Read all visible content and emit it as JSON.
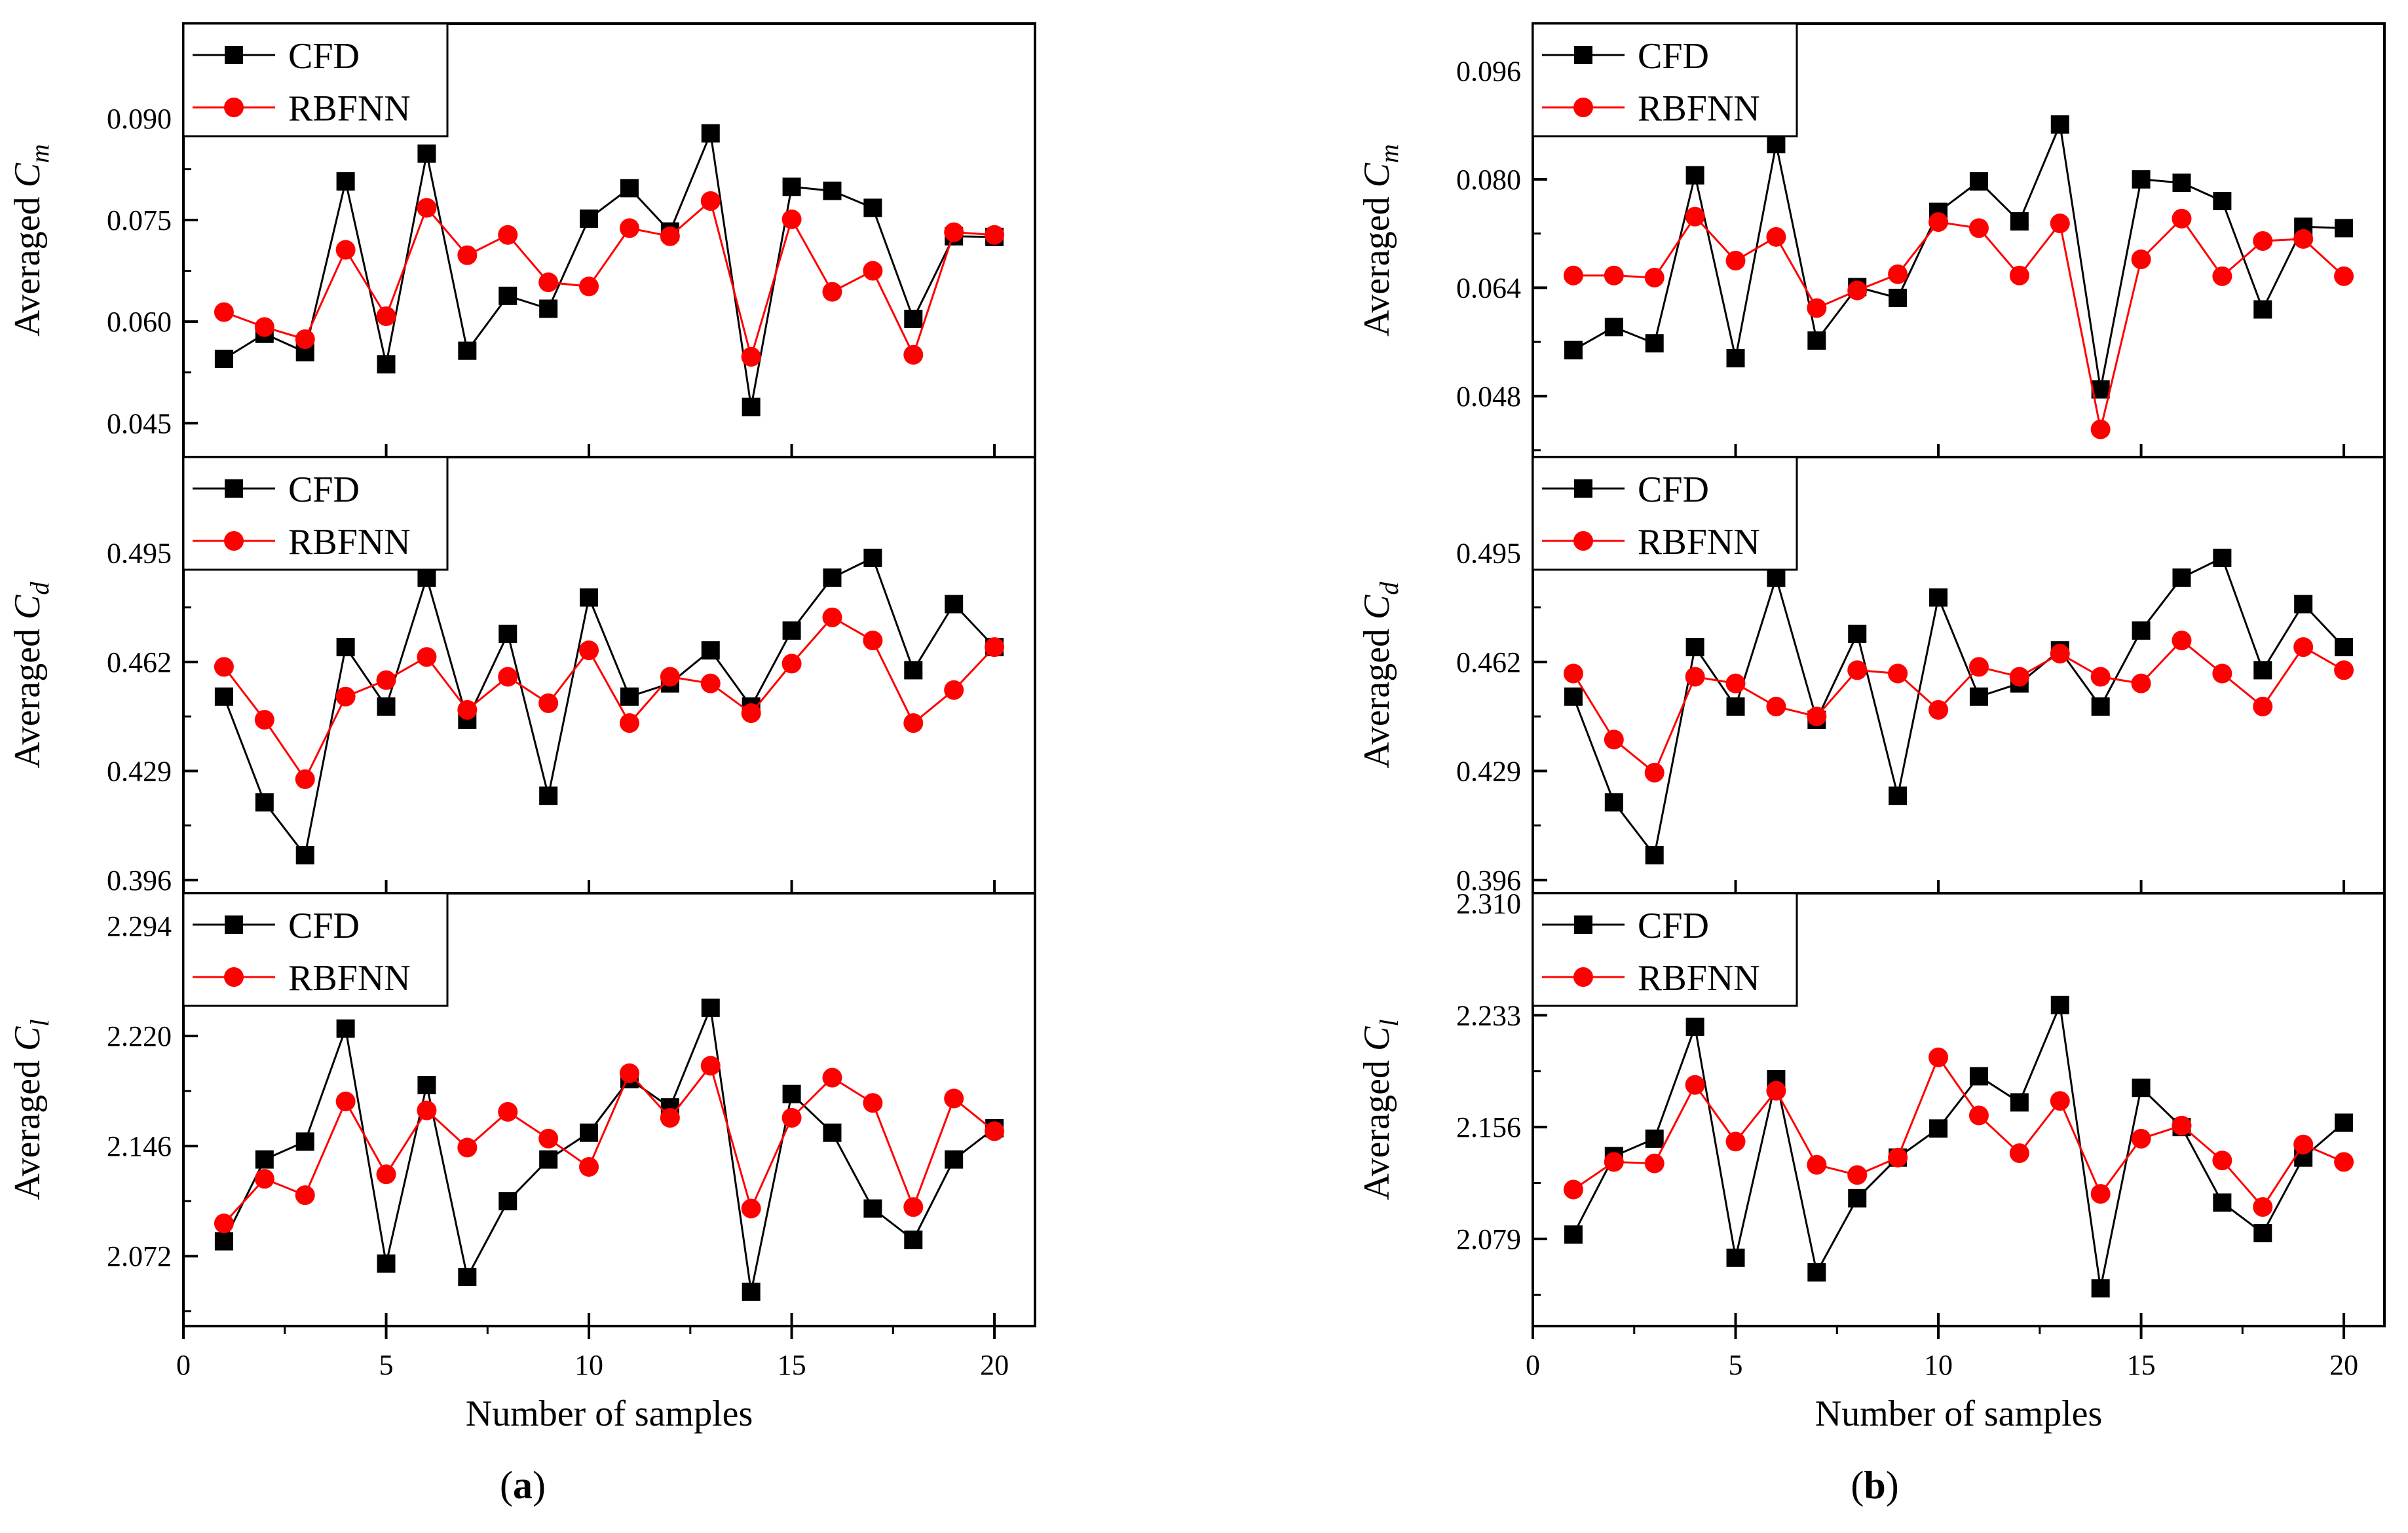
{
  "figure": {
    "xlabel": "Number of samples",
    "legend": {
      "cfd": "CFD",
      "rbfnn": "RBFNN"
    },
    "xticks": [
      "0",
      "5",
      "10",
      "15",
      "20"
    ],
    "colors": {
      "cfd": "#000000",
      "rbfnn": "#ff0000",
      "axis": "#000000"
    }
  },
  "panels": [
    {
      "caption": {
        "open": "(",
        "letter": "a",
        "close": ")"
      },
      "subplots": [
        {
          "yprefix": "Averaged ",
          "ysym": "C",
          "ysub": "m",
          "yticks": [
            "0.045",
            "0.060",
            "0.075",
            "0.090"
          ]
        },
        {
          "yprefix": "Averaged ",
          "ysym": "C",
          "ysub": "d",
          "yticks": [
            "0.396",
            "0.429",
            "0.462",
            "0.495"
          ]
        },
        {
          "yprefix": "Averaged ",
          "ysym": "C",
          "ysub": "l",
          "yticks": [
            "2.072",
            "2.146",
            "2.220",
            "2.294"
          ]
        }
      ]
    },
    {
      "caption": {
        "open": "(",
        "letter": "b",
        "close": ")"
      },
      "subplots": [
        {
          "yprefix": "Averaged ",
          "ysym": "C",
          "ysub": "m",
          "yticks": [
            "0.048",
            "0.064",
            "0.080",
            "0.096"
          ]
        },
        {
          "yprefix": "Averaged ",
          "ysym": "C",
          "ysub": "d",
          "yticks": [
            "0.396",
            "0.429",
            "0.462",
            "0.495"
          ]
        },
        {
          "yprefix": "Averaged ",
          "ysym": "C",
          "ysub": "l",
          "yticks": [
            "2.079",
            "2.156",
            "2.233",
            "2.310"
          ]
        }
      ]
    }
  ],
  "chart_data": [
    {
      "type": "line",
      "panel": "a",
      "title": "",
      "xlabel": "",
      "ylabel": "Averaged C_m",
      "xlim": [
        0,
        21
      ],
      "ylim": [
        0.04,
        0.104
      ],
      "x": [
        1,
        2,
        3,
        4,
        5,
        6,
        7,
        8,
        9,
        10,
        11,
        12,
        13,
        14,
        15,
        16,
        17,
        18,
        19,
        20
      ],
      "series": [
        {
          "name": "CFD",
          "marker": "square",
          "values": [
            0.0545,
            0.0582,
            0.0555,
            0.0807,
            0.0537,
            0.0848,
            0.0557,
            0.0638,
            0.0619,
            0.0752,
            0.0797,
            0.0733,
            0.0878,
            0.0474,
            0.0799,
            0.0793,
            0.0768,
            0.0604,
            0.0726,
            0.0725
          ]
        },
        {
          "name": "RBFNN",
          "marker": "circle",
          "values": [
            0.0614,
            0.0592,
            0.0574,
            0.0706,
            0.0608,
            0.0768,
            0.0698,
            0.0728,
            0.0658,
            0.0652,
            0.0738,
            0.0726,
            0.0778,
            0.0548,
            0.0751,
            0.0644,
            0.0675,
            0.0551,
            0.0732,
            0.0728
          ]
        }
      ]
    },
    {
      "type": "line",
      "panel": "a",
      "title": "",
      "xlabel": "",
      "ylabel": "Averaged C_d",
      "xlim": [
        0,
        21
      ],
      "ylim": [
        0.392,
        0.524
      ],
      "x": [
        1,
        2,
        3,
        4,
        5,
        6,
        7,
        8,
        9,
        10,
        11,
        12,
        13,
        14,
        15,
        16,
        17,
        18,
        19,
        20
      ],
      "series": [
        {
          "name": "CFD",
          "marker": "square",
          "values": [
            0.4515,
            0.4195,
            0.4035,
            0.4665,
            0.4485,
            0.4875,
            0.4445,
            0.4705,
            0.4215,
            0.4815,
            0.4515,
            0.4555,
            0.4655,
            0.4485,
            0.4715,
            0.4875,
            0.4935,
            0.4595,
            0.4795,
            0.4665
          ]
        },
        {
          "name": "RBFNN",
          "marker": "circle",
          "values": [
            0.4605,
            0.4445,
            0.4265,
            0.4515,
            0.4565,
            0.4635,
            0.4475,
            0.4575,
            0.4495,
            0.4655,
            0.4435,
            0.4575,
            0.4555,
            0.4465,
            0.4615,
            0.4755,
            0.4685,
            0.4435,
            0.4535,
            0.4665
          ]
        }
      ]
    },
    {
      "type": "line",
      "panel": "a",
      "title": "",
      "xlabel": "",
      "ylabel": "Averaged C_l",
      "xlim": [
        0,
        21
      ],
      "ylim": [
        2.025,
        2.316
      ],
      "x": [
        1,
        2,
        3,
        4,
        5,
        6,
        7,
        8,
        9,
        10,
        11,
        12,
        13,
        14,
        15,
        16,
        17,
        18,
        19,
        20
      ],
      "series": [
        {
          "name": "CFD",
          "marker": "square",
          "values": [
            2.082,
            2.137,
            2.149,
            2.225,
            2.067,
            2.187,
            2.058,
            2.109,
            2.137,
            2.155,
            2.191,
            2.172,
            2.239,
            2.048,
            2.181,
            2.155,
            2.104,
            2.083,
            2.137,
            2.158
          ]
        },
        {
          "name": "RBFNN",
          "marker": "circle",
          "values": [
            2.094,
            2.124,
            2.113,
            2.176,
            2.127,
            2.17,
            2.145,
            2.169,
            2.151,
            2.132,
            2.195,
            2.165,
            2.2,
            2.104,
            2.165,
            2.192,
            2.175,
            2.105,
            2.178,
            2.156
          ]
        }
      ]
    },
    {
      "type": "line",
      "panel": "b",
      "title": "",
      "xlabel": "",
      "ylabel": "Averaged C_m",
      "xlim": [
        0,
        21
      ],
      "ylim": [
        0.039,
        0.103
      ],
      "x": [
        1,
        2,
        3,
        4,
        5,
        6,
        7,
        8,
        9,
        10,
        11,
        12,
        13,
        14,
        15,
        16,
        17,
        18,
        19,
        20
      ],
      "series": [
        {
          "name": "CFD",
          "marker": "square",
          "values": [
            0.0548,
            0.0582,
            0.0558,
            0.0806,
            0.0536,
            0.0852,
            0.0562,
            0.0641,
            0.0625,
            0.0752,
            0.0797,
            0.0738,
            0.0881,
            0.049,
            0.08,
            0.0795,
            0.0768,
            0.0608,
            0.073,
            0.0728
          ]
        },
        {
          "name": "RBFNN",
          "marker": "circle",
          "values": [
            0.0658,
            0.0658,
            0.0655,
            0.0745,
            0.068,
            0.0715,
            0.061,
            0.0636,
            0.066,
            0.0737,
            0.0728,
            0.0658,
            0.0735,
            0.0431,
            0.0682,
            0.0742,
            0.0657,
            0.0709,
            0.0712,
            0.0657
          ]
        }
      ]
    },
    {
      "type": "line",
      "panel": "b",
      "title": "",
      "xlabel": "",
      "ylabel": "Averaged C_d",
      "xlim": [
        0,
        21
      ],
      "ylim": [
        0.392,
        0.524
      ],
      "x": [
        1,
        2,
        3,
        4,
        5,
        6,
        7,
        8,
        9,
        10,
        11,
        12,
        13,
        14,
        15,
        16,
        17,
        18,
        19,
        20
      ],
      "series": [
        {
          "name": "CFD",
          "marker": "square",
          "values": [
            0.4515,
            0.4195,
            0.4035,
            0.4665,
            0.4485,
            0.4875,
            0.4445,
            0.4705,
            0.4215,
            0.4815,
            0.4515,
            0.4555,
            0.4655,
            0.4485,
            0.4715,
            0.4875,
            0.4935,
            0.4595,
            0.4795,
            0.4665
          ]
        },
        {
          "name": "RBFNN",
          "marker": "circle",
          "values": [
            0.4585,
            0.4385,
            0.4285,
            0.4575,
            0.4555,
            0.4485,
            0.4455,
            0.4595,
            0.4585,
            0.4475,
            0.4605,
            0.4575,
            0.4645,
            0.4575,
            0.4555,
            0.4685,
            0.4585,
            0.4485,
            0.4665,
            0.4595
          ]
        }
      ]
    },
    {
      "type": "line",
      "panel": "b",
      "title": "",
      "xlabel": "",
      "ylabel": "Averaged C_l",
      "xlim": [
        0,
        21
      ],
      "ylim": [
        2.019,
        2.317
      ],
      "x": [
        1,
        2,
        3,
        4,
        5,
        6,
        7,
        8,
        9,
        10,
        11,
        12,
        13,
        14,
        15,
        16,
        17,
        18,
        19,
        20
      ],
      "series": [
        {
          "name": "CFD",
          "marker": "square",
          "values": [
            2.082,
            2.136,
            2.148,
            2.225,
            2.066,
            2.189,
            2.056,
            2.107,
            2.135,
            2.155,
            2.191,
            2.173,
            2.24,
            2.045,
            2.183,
            2.156,
            2.104,
            2.083,
            2.135,
            2.159
          ]
        },
        {
          "name": "RBFNN",
          "marker": "circle",
          "values": [
            2.113,
            2.132,
            2.131,
            2.185,
            2.146,
            2.181,
            2.13,
            2.123,
            2.135,
            2.204,
            2.164,
            2.138,
            2.174,
            2.11,
            2.148,
            2.157,
            2.133,
            2.101,
            2.144,
            2.132
          ]
        }
      ]
    }
  ]
}
